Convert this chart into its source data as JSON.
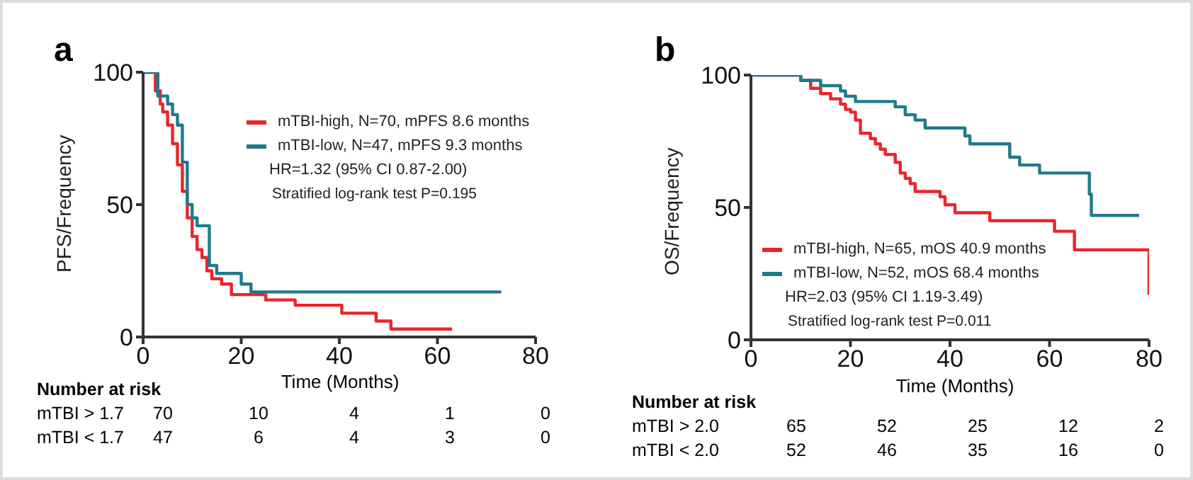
{
  "chart_data": [
    {
      "type": "step",
      "title": "a",
      "xlabel": "Time (Months)",
      "ylabel": "PFS/Frequency",
      "xlim": [
        0,
        80
      ],
      "xticks": [
        0,
        20,
        40,
        60,
        80
      ],
      "ylim": [
        0,
        100
      ],
      "yticks": [
        0,
        50,
        100
      ],
      "grid": false,
      "legend": "top right",
      "marker": "none",
      "annotations": [
        "HR=1.32 (95% CI 0.87-2.00)",
        "Stratified log-rank test P=0.195",
        "Number at risk",
        "mTBI > 1.7",
        "70",
        "10",
        "4",
        "1",
        "0",
        "mTBI < 1.7",
        "47",
        "6",
        "4",
        "3",
        "0"
      ],
      "series": [
        {
          "name": "mTBI-high, N=70, mPFS 8.6 months",
          "color": "#e8262a",
          "x": [
            0,
            2,
            2.5,
            3.5,
            4,
            5,
            6,
            7,
            8,
            9,
            10,
            11,
            12,
            13,
            14,
            16,
            18,
            25,
            31,
            40.5,
            47.5,
            50.5,
            63
          ],
          "values": [
            100,
            100,
            93,
            88,
            85,
            80,
            73,
            65,
            55,
            45,
            38,
            33,
            30,
            25,
            22,
            20,
            16,
            14,
            12,
            9,
            6,
            3,
            3
          ]
        },
        {
          "name": "mTBI-low, N=47, mPFS 9.3 months",
          "color": "#1f7a8c",
          "x": [
            0,
            2,
            3,
            5,
            6,
            7,
            8,
            9,
            10,
            11,
            13.5,
            15,
            20,
            22,
            73
          ],
          "values": [
            100,
            100,
            91,
            88,
            84,
            80,
            66,
            50,
            45,
            42,
            27,
            24,
            20,
            17,
            17
          ]
        }
      ]
    },
    {
      "type": "step",
      "title": "b",
      "xlabel": "Time (Months)",
      "ylabel": "OS/Frequency",
      "xlim": [
        0,
        80
      ],
      "xticks": [
        0,
        20,
        40,
        60,
        80
      ],
      "ylim": [
        0,
        100
      ],
      "yticks": [
        0,
        50,
        100
      ],
      "grid": false,
      "legend": "bottom",
      "marker": "none",
      "annotations": [
        "HR=2.03 (95% CI 1.19-3.49)",
        "Stratified log-rank test P=0.011",
        "Number at risk",
        "mTBI > 2.0",
        "65",
        "52",
        "25",
        "12",
        "2",
        "mTBI < 2.0",
        "52",
        "46",
        "35",
        "16",
        "0"
      ],
      "series": [
        {
          "name": "mTBI-high, N=65, mOS 40.9 months",
          "color": "#e8262a",
          "x": [
            0,
            10,
            12,
            14,
            16,
            18,
            19,
            20,
            21,
            22,
            24,
            25,
            26,
            27,
            29,
            30,
            31,
            32,
            33,
            38,
            39,
            41,
            48,
            61,
            65,
            80
          ],
          "values": [
            100,
            98,
            95,
            93,
            91,
            89,
            87,
            86,
            83,
            78,
            76,
            74,
            72,
            70,
            67,
            63,
            61,
            59,
            56,
            54,
            51,
            48,
            45,
            41,
            34,
            17
          ]
        },
        {
          "name": "mTBI-low, N=52, mOS 68.4 months",
          "color": "#1f7a8c",
          "x": [
            0,
            10,
            14,
            18,
            19,
            21,
            29,
            31,
            33,
            35,
            43,
            44,
            52,
            54,
            58,
            68,
            68.4,
            78
          ],
          "values": [
            100,
            98,
            96,
            94,
            92,
            90,
            88,
            85,
            83,
            80,
            77,
            74,
            69,
            66,
            63,
            55,
            47,
            47
          ]
        }
      ]
    }
  ]
}
